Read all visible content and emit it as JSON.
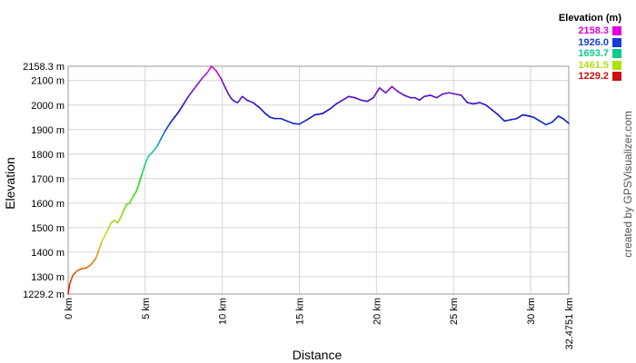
{
  "chart_data": {
    "type": "line",
    "xlabel": "Distance",
    "ylabel": "Elevation",
    "xlim": [
      0,
      32.4751
    ],
    "ylim": [
      1229.2,
      2158.3
    ],
    "x_ticks": [
      {
        "value": 0,
        "label": "0 km"
      },
      {
        "value": 5,
        "label": "5 km"
      },
      {
        "value": 10,
        "label": "10 km"
      },
      {
        "value": 15,
        "label": "15 km"
      },
      {
        "value": 20,
        "label": "20 km"
      },
      {
        "value": 25,
        "label": "25 km"
      },
      {
        "value": 30,
        "label": "30 km"
      },
      {
        "value": 32.4751,
        "label": "32.4751 km"
      }
    ],
    "y_ticks": [
      {
        "value": 1229.2,
        "label": "1229.2 m"
      },
      {
        "value": 1300,
        "label": "1300 m"
      },
      {
        "value": 1400,
        "label": "1400 m"
      },
      {
        "value": 1500,
        "label": "1500 m"
      },
      {
        "value": 1600,
        "label": "1600 m"
      },
      {
        "value": 1700,
        "label": "1700 m"
      },
      {
        "value": 1800,
        "label": "1800 m"
      },
      {
        "value": 1900,
        "label": "1900 m"
      },
      {
        "value": 2000,
        "label": "2000 m"
      },
      {
        "value": 2100,
        "label": "2100 m"
      },
      {
        "value": 2158.3,
        "label": "2158.3 m"
      }
    ],
    "grid": true,
    "series": [
      {
        "x": [
          0,
          0.1,
          0.3,
          0.6,
          0.9,
          1.2,
          1.5,
          1.8,
          2.0,
          2.2,
          2.4,
          2.6,
          2.8,
          3.0,
          3.2,
          3.4,
          3.6,
          3.8,
          4.0,
          4.2,
          4.4,
          4.6,
          4.8,
          5.0,
          5.2,
          5.5,
          5.8,
          6.0,
          6.3,
          6.6,
          6.9,
          7.2,
          7.5,
          7.8,
          8.1,
          8.4,
          8.7,
          9.0,
          9.3,
          9.6,
          9.9,
          10.2,
          10.4,
          10.6,
          10.8,
          11.0,
          11.3,
          11.6,
          12.0,
          12.4,
          12.8,
          13.1,
          13.4,
          13.8,
          14.2,
          14.6,
          15.0,
          15.5,
          16.0,
          16.5,
          17.0,
          17.4,
          17.8,
          18.2,
          18.6,
          19.0,
          19.4,
          19.8,
          20.2,
          20.6,
          21.0,
          21.4,
          21.8,
          22.2,
          22.5,
          22.8,
          23.1,
          23.5,
          23.9,
          24.3,
          24.7,
          25.1,
          25.5,
          25.9,
          26.3,
          26.7,
          27.1,
          27.5,
          27.9,
          28.3,
          28.7,
          29.1,
          29.5,
          29.9,
          30.2,
          30.6,
          31.0,
          31.4,
          31.8,
          32.1,
          32.4751
        ],
        "y": [
          1229.2,
          1270,
          1305,
          1325,
          1333,
          1336,
          1350,
          1375,
          1410,
          1445,
          1470,
          1495,
          1520,
          1530,
          1520,
          1540,
          1570,
          1595,
          1600,
          1625,
          1645,
          1680,
          1720,
          1760,
          1790,
          1810,
          1835,
          1860,
          1895,
          1925,
          1950,
          1975,
          2005,
          2035,
          2060,
          2085,
          2110,
          2130,
          2158.3,
          2140,
          2110,
          2070,
          2045,
          2025,
          2015,
          2010,
          2035,
          2020,
          2010,
          1990,
          1965,
          1950,
          1945,
          1945,
          1935,
          1925,
          1922,
          1940,
          1960,
          1965,
          1985,
          2005,
          2020,
          2035,
          2030,
          2020,
          2015,
          2030,
          2070,
          2050,
          2075,
          2055,
          2040,
          2030,
          2030,
          2020,
          2035,
          2040,
          2030,
          2045,
          2050,
          2045,
          2040,
          2010,
          2005,
          2010,
          2000,
          1980,
          1960,
          1935,
          1940,
          1945,
          1960,
          1955,
          1950,
          1935,
          1920,
          1930,
          1955,
          1945,
          1925
        ]
      }
    ],
    "color_scale": [
      {
        "value": "2158.3",
        "color": "#e000e0"
      },
      {
        "value": "1926.0",
        "color": "#1a3ad8"
      },
      {
        "value": "1693.7",
        "color": "#10c890"
      },
      {
        "value": "1461.5",
        "color": "#b0e010"
      },
      {
        "value": "1229.2",
        "color": "#cc1010"
      }
    ]
  },
  "legend": {
    "title": "Elevation (m)"
  },
  "credit": "created by GPSVisualizer.com"
}
